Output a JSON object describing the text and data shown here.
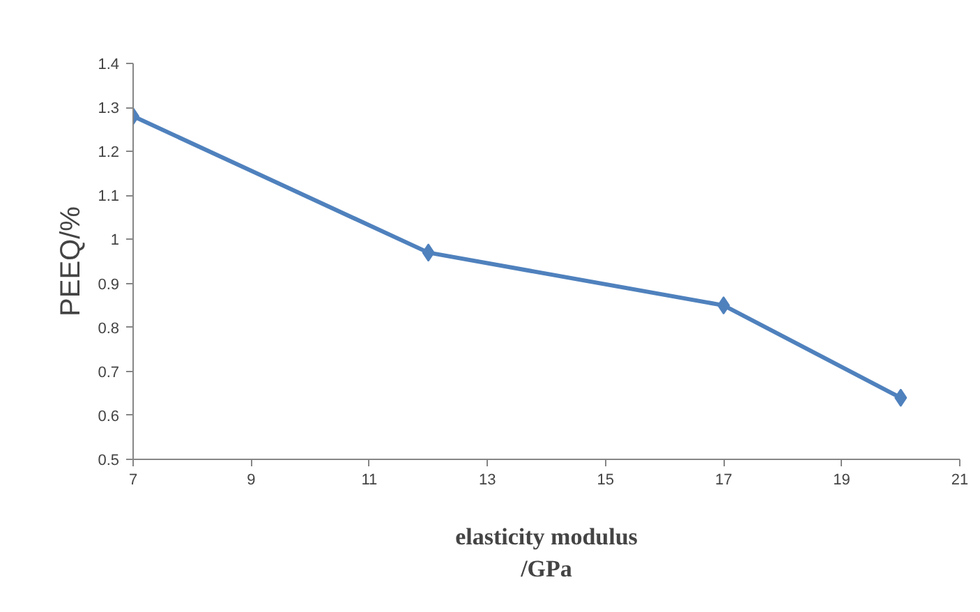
{
  "chart_data": {
    "type": "line",
    "xlabel": "elasticity modulus\n/GPa",
    "ylabel": "PEEQ/%",
    "x": [
      7,
      12,
      17,
      20
    ],
    "series": [
      {
        "color": "#4f81bd",
        "values": [
          1.28,
          0.97,
          0.85,
          0.64
        ]
      }
    ],
    "xlim": [
      7,
      21
    ],
    "xticks": [
      7,
      9,
      11,
      13,
      15,
      17,
      19,
      21
    ],
    "ylim": [
      0.5,
      1.4
    ],
    "yticks": [
      0.5,
      0.6,
      0.7,
      0.8,
      0.9,
      1,
      1.1,
      1.2,
      1.3,
      1.4
    ],
    "grid": false,
    "marker": "diamond",
    "line_style": "solid"
  }
}
